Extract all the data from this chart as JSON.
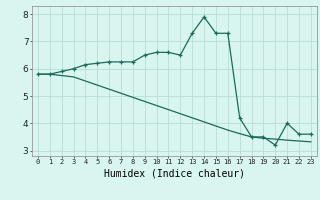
{
  "xlabel": "Humidex (Indice chaleur)",
  "line1_x": [
    0,
    1,
    2,
    3,
    4,
    5,
    6,
    7,
    8,
    9,
    10,
    11,
    12,
    13,
    14,
    15,
    16,
    17,
    18,
    19,
    20,
    21,
    22,
    23
  ],
  "line1_y": [
    5.8,
    5.8,
    5.9,
    6.0,
    6.15,
    6.2,
    6.25,
    6.25,
    6.25,
    6.5,
    6.6,
    6.6,
    6.5,
    7.3,
    7.9,
    7.3,
    7.3,
    4.2,
    3.5,
    3.5,
    3.2,
    4.0,
    3.6,
    3.6
  ],
  "line2_x": [
    0,
    1,
    2,
    3,
    4,
    5,
    6,
    7,
    8,
    9,
    10,
    11,
    12,
    13,
    14,
    15,
    16,
    17,
    18,
    19,
    20,
    21,
    22,
    23
  ],
  "line2_y": [
    5.8,
    5.8,
    5.75,
    5.7,
    5.55,
    5.4,
    5.25,
    5.1,
    4.95,
    4.8,
    4.65,
    4.5,
    4.35,
    4.2,
    4.05,
    3.9,
    3.75,
    3.62,
    3.5,
    3.45,
    3.42,
    3.38,
    3.35,
    3.32
  ],
  "line_color": "#1a6b5a",
  "bg_color": "#d8f5f0",
  "grid_color": "#b8ddd8",
  "xlim": [
    -0.5,
    23.5
  ],
  "ylim": [
    2.8,
    8.3
  ],
  "yticks": [
    3,
    4,
    5,
    6,
    7,
    8
  ],
  "xticks": [
    0,
    1,
    2,
    3,
    4,
    5,
    6,
    7,
    8,
    9,
    10,
    11,
    12,
    13,
    14,
    15,
    16,
    17,
    18,
    19,
    20,
    21,
    22,
    23
  ],
  "xtick_labels": [
    "0",
    "1",
    "2",
    "3",
    "4",
    "5",
    "6",
    "7",
    "8",
    "9",
    "10",
    "11",
    "12",
    "13",
    "14",
    "15",
    "16",
    "17",
    "18",
    "19",
    "20",
    "21",
    "22",
    "23"
  ]
}
